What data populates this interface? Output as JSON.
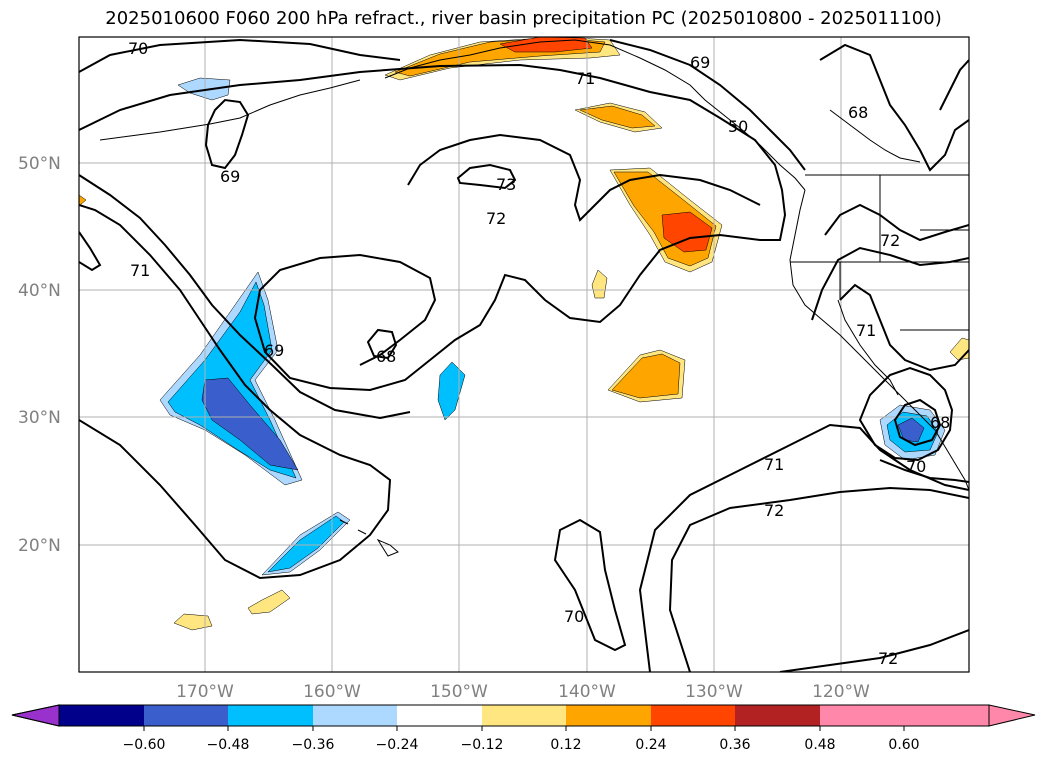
{
  "title": "2025010600 F060 200 hPa refract., river basin precipitation PC (2025010800 - 2025011100)",
  "lat_labels": [
    "50°N",
    "40°N",
    "30°N",
    "20°N"
  ],
  "lon_labels": [
    "170°W",
    "160°W",
    "150°W",
    "140°W",
    "130°W",
    "120°W"
  ],
  "contour_labels": [
    "70",
    "71",
    "69",
    "50",
    "68",
    "73",
    "72",
    "69",
    "72",
    "71",
    "71",
    "68",
    "69",
    "68",
    "70",
    "71",
    "72",
    "70",
    "72"
  ],
  "colorbar": {
    "ticks": [
      "−0.60",
      "−0.48",
      "−0.36",
      "−0.24",
      "−0.12",
      "0.12",
      "0.24",
      "0.36",
      "0.48",
      "0.60"
    ],
    "colors": [
      "#9932cc",
      "#00008b",
      "#3a5fcd",
      "#00bfff",
      "#add8ff",
      "#ffffff",
      "#ffe680",
      "#ffa500",
      "#ff4500",
      "#b22222",
      "#ff88aa"
    ]
  },
  "fill_colors": {
    "neg_light": "#add8ff",
    "neg_mid": "#00bfff",
    "neg_dark": "#3a5fcd",
    "pos_light": "#ffe680",
    "pos_mid": "#ffa500",
    "pos_dark": "#ff4500"
  }
}
